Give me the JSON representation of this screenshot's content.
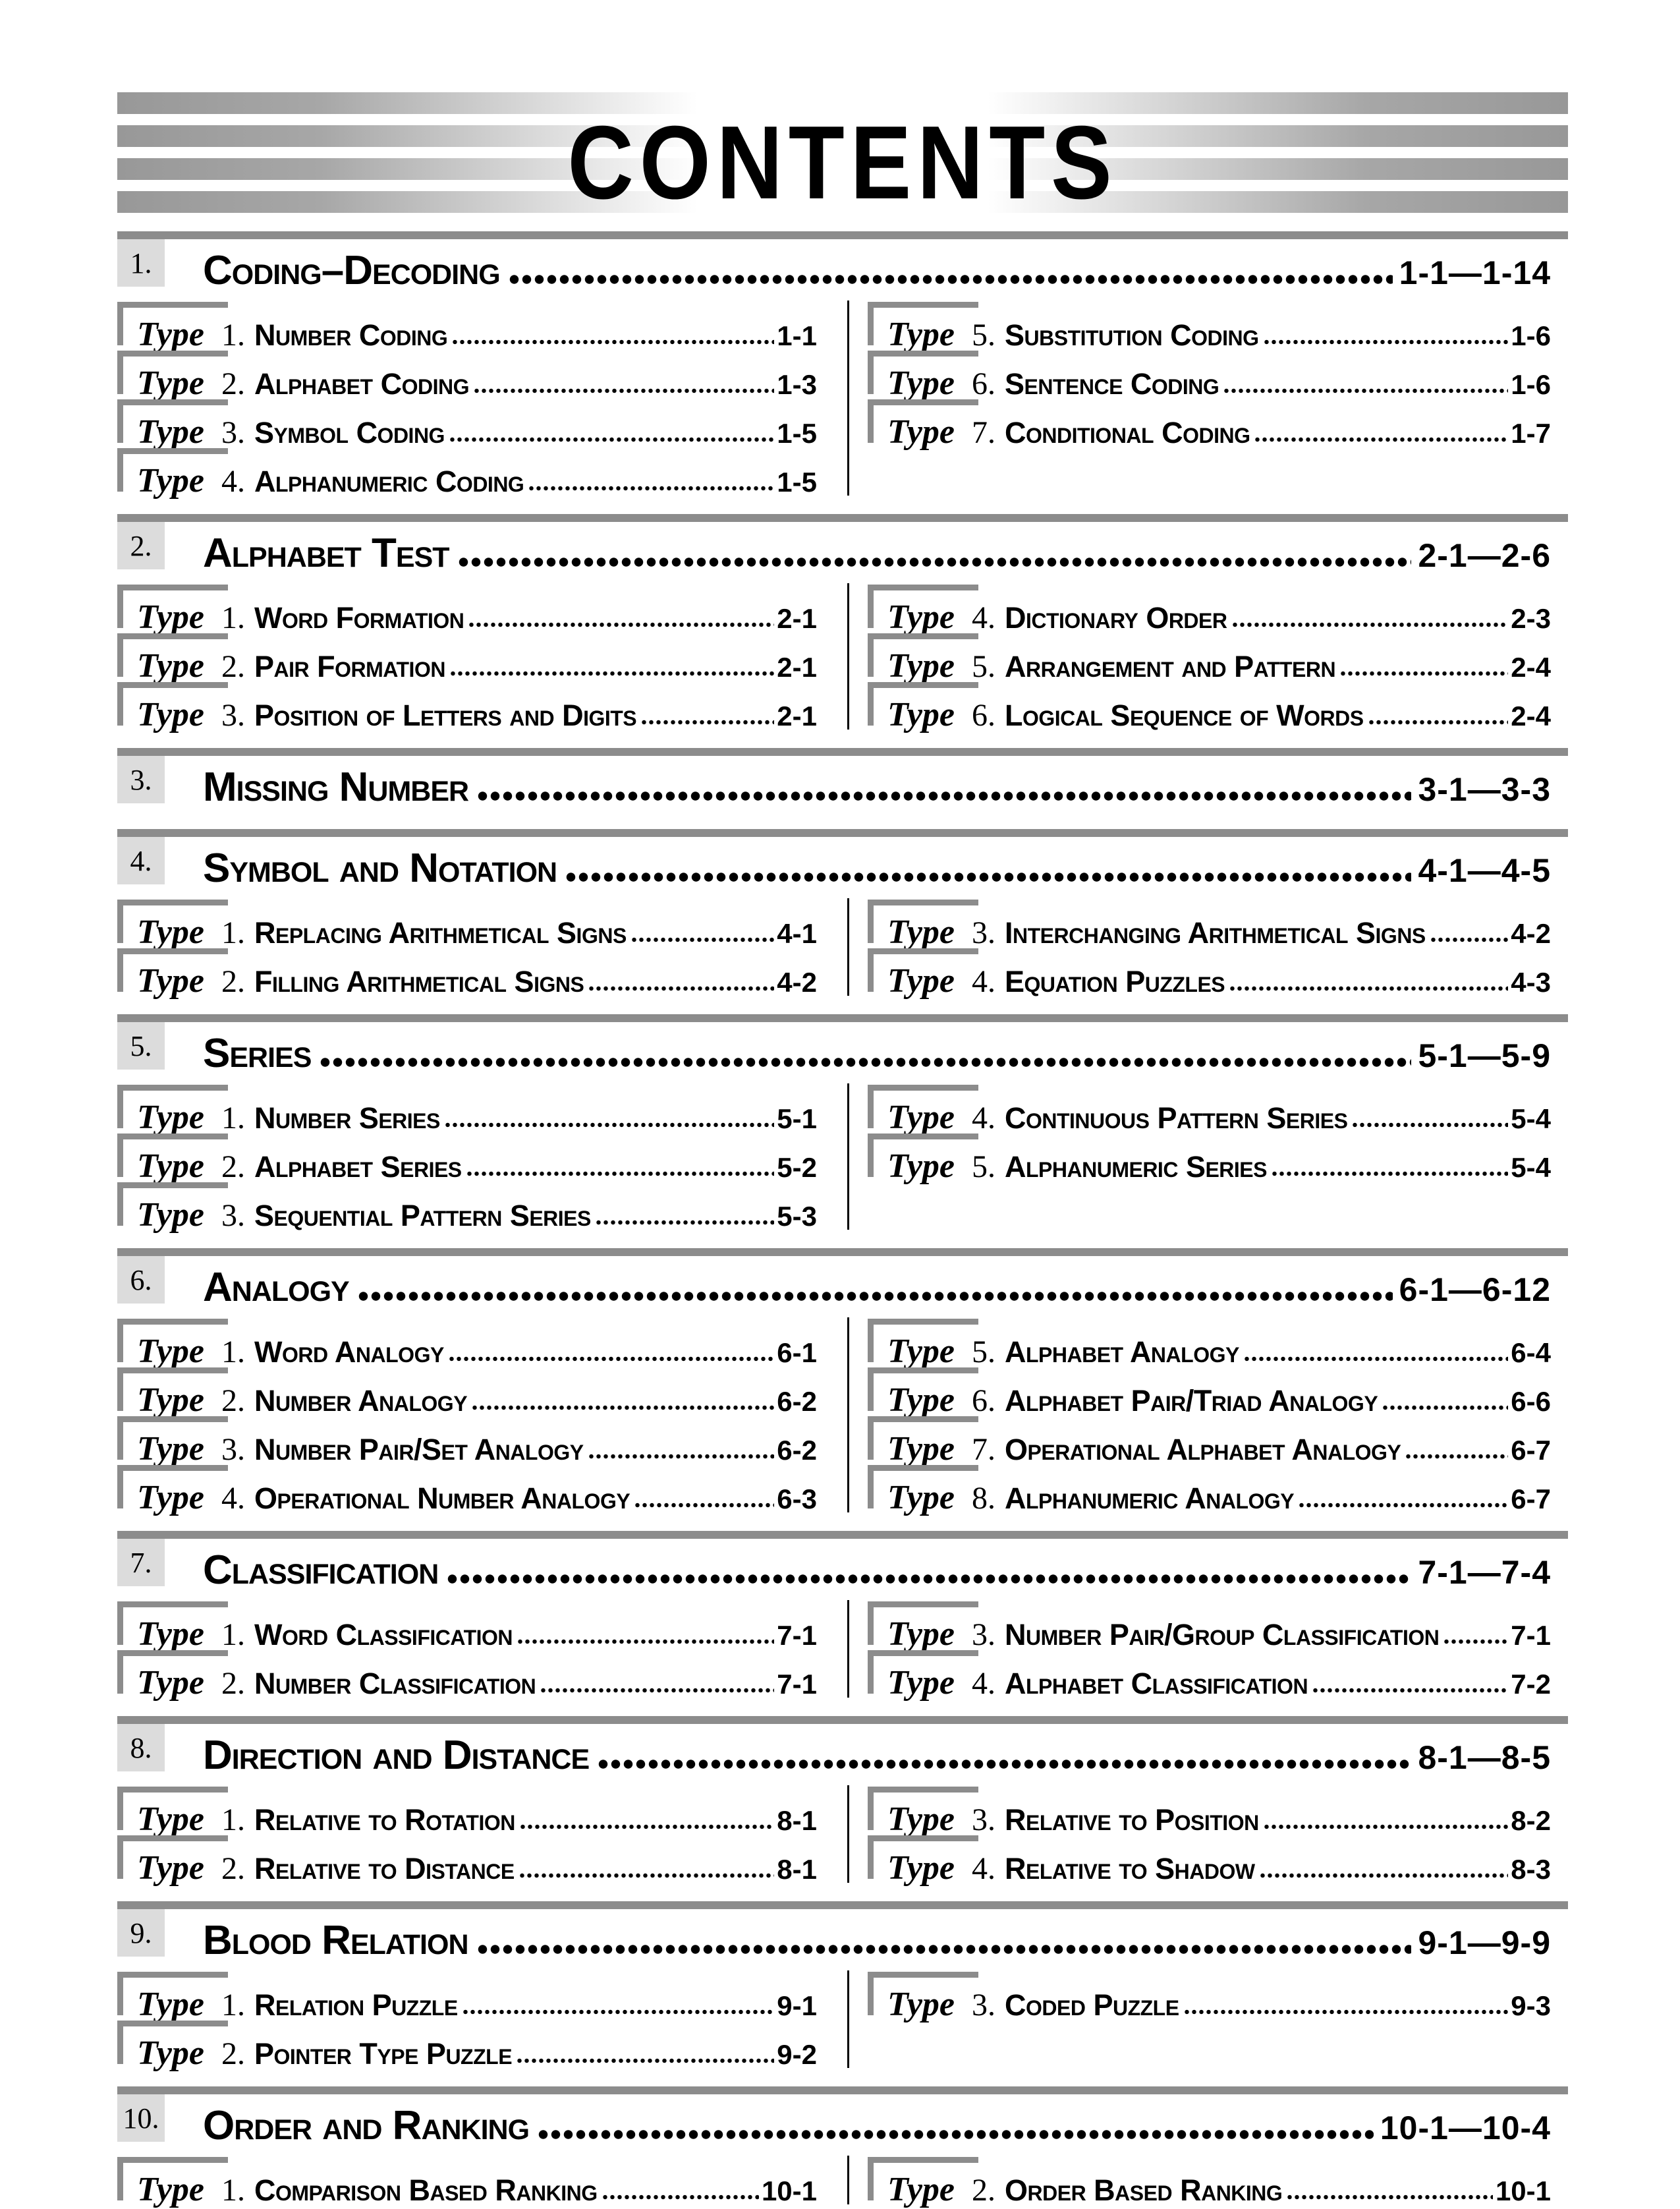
{
  "page_title": "CONTENTS",
  "type_word": "Type",
  "colors": {
    "section_bar_gray": "#8c8c8c",
    "number_box_gray": "#dcdcdc",
    "bracket_gray": "#8c8c8c",
    "stripe_gray": "#989898",
    "text": "#000000"
  },
  "sections": [
    {
      "num": "1.",
      "title": "Coding–Decoding",
      "range": "1-1—1-14",
      "left": [
        {
          "num": "1.",
          "title": "Number Coding",
          "page": "1-1"
        },
        {
          "num": "2.",
          "title": "Alphabet Coding",
          "page": "1-3"
        },
        {
          "num": "3.",
          "title": "Symbol Coding",
          "page": "1-5"
        },
        {
          "num": "4.",
          "title": "Alphanumeric Coding",
          "page": "1-5"
        }
      ],
      "right": [
        {
          "num": "5.",
          "title": "Substitution Coding",
          "page": "1-6"
        },
        {
          "num": "6.",
          "title": "Sentence Coding",
          "page": "1-6"
        },
        {
          "num": "7.",
          "title": "Conditional Coding",
          "page": "1-7"
        }
      ]
    },
    {
      "num": "2.",
      "title": "Alphabet Test",
      "range": "2-1—2-6",
      "left": [
        {
          "num": "1.",
          "title": "Word Formation",
          "page": "2-1"
        },
        {
          "num": "2.",
          "title": "Pair Formation",
          "page": "2-1"
        },
        {
          "num": "3.",
          "title": "Position of Letters and Digits",
          "page": "2-1"
        }
      ],
      "right": [
        {
          "num": "4.",
          "title": "Dictionary Order",
          "page": "2-3"
        },
        {
          "num": "5.",
          "title": "Arrangement and Pattern",
          "page": "2-4"
        },
        {
          "num": "6.",
          "title": "Logical Sequence of Words",
          "page": "2-4"
        }
      ]
    },
    {
      "num": "3.",
      "title": "Missing Number",
      "range": "3-1—3-3",
      "left": [],
      "right": []
    },
    {
      "num": "4.",
      "title": "Symbol and Notation",
      "range": "4-1—4-5",
      "left": [
        {
          "num": "1.",
          "title": "Replacing Arithmetical Signs",
          "page": "4-1"
        },
        {
          "num": "2.",
          "title": "Filling Arithmetical Signs",
          "page": "4-2"
        }
      ],
      "right": [
        {
          "num": "3.",
          "title": "Interchanging Arithmetical Signs",
          "page": "4-2"
        },
        {
          "num": "4.",
          "title": "Equation Puzzles",
          "page": "4-3"
        }
      ]
    },
    {
      "num": "5.",
      "title": "Series",
      "range": "5-1—5-9",
      "left": [
        {
          "num": "1.",
          "title": "Number Series",
          "page": "5-1"
        },
        {
          "num": "2.",
          "title": "Alphabet Series",
          "page": "5-2"
        },
        {
          "num": "3.",
          "title": "Sequential Pattern Series",
          "page": "5-3"
        }
      ],
      "right": [
        {
          "num": "4.",
          "title": "Continuous Pattern Series",
          "page": "5-4"
        },
        {
          "num": "5.",
          "title": "Alphanumeric Series",
          "page": "5-4"
        }
      ]
    },
    {
      "num": "6.",
      "title": "Analogy",
      "range": "6-1—6-12",
      "left": [
        {
          "num": "1.",
          "title": "Word Analogy",
          "page": "6-1"
        },
        {
          "num": "2.",
          "title": "Number Analogy",
          "page": "6-2"
        },
        {
          "num": "3.",
          "title": "Number Pair/Set Analogy",
          "page": "6-2"
        },
        {
          "num": "4.",
          "title": "Operational Number Analogy",
          "page": "6-3"
        }
      ],
      "right": [
        {
          "num": "5.",
          "title": "Alphabet Analogy",
          "page": "6-4"
        },
        {
          "num": "6.",
          "title": "Alphabet Pair/Triad Analogy",
          "page": "6-6"
        },
        {
          "num": "7.",
          "title": "Operational Alphabet Analogy",
          "page": "6-7"
        },
        {
          "num": "8.",
          "title": "Alphanumeric Analogy",
          "page": "6-7"
        }
      ]
    },
    {
      "num": "7.",
      "title": "Classification",
      "range": "7-1—7-4",
      "left": [
        {
          "num": "1.",
          "title": "Word Classification",
          "page": "7-1"
        },
        {
          "num": "2.",
          "title": "Number Classification",
          "page": "7-1"
        }
      ],
      "right": [
        {
          "num": "3.",
          "title": "Number Pair/Group Classification",
          "page": "7-1"
        },
        {
          "num": "4.",
          "title": "Alphabet Classification",
          "page": "7-2"
        }
      ]
    },
    {
      "num": "8.",
      "title": "Direction and Distance",
      "range": "8-1—8-5",
      "left": [
        {
          "num": "1.",
          "title": "Relative to Rotation",
          "page": "8-1"
        },
        {
          "num": "2.",
          "title": "Relative to Distance",
          "page": "8-1"
        }
      ],
      "right": [
        {
          "num": "3.",
          "title": "Relative to Position",
          "page": "8-2"
        },
        {
          "num": "4.",
          "title": "Relative to Shadow",
          "page": "8-3"
        }
      ]
    },
    {
      "num": "9.",
      "title": "Blood Relation",
      "range": "9-1—9-9",
      "left": [
        {
          "num": "1.",
          "title": "Relation Puzzle",
          "page": "9-1"
        },
        {
          "num": "2.",
          "title": "Pointer Type Puzzle",
          "page": "9-2"
        }
      ],
      "right": [
        {
          "num": "3.",
          "title": "Coded Puzzle",
          "page": "9-3"
        }
      ]
    },
    {
      "num": "10.",
      "title": "Order and Ranking",
      "range": "10-1—10-4",
      "left": [
        {
          "num": "1.",
          "title": "Comparison Based Ranking",
          "page": "10-1"
        }
      ],
      "right": [
        {
          "num": "2.",
          "title": "Order Based Ranking",
          "page": "10-1"
        }
      ]
    }
  ]
}
